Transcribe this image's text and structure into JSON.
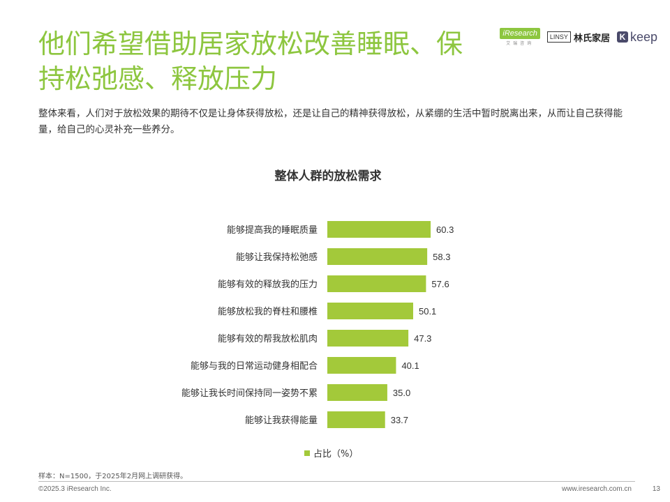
{
  "header": {
    "title": "他们希望借助居家放松改善睡眠、保持松弛感、释放压力",
    "logos": {
      "iresearch": "iResearch",
      "iresearch_sub": "艾瑞咨询",
      "linsy_box": "LINSY",
      "linsy_text": "林氏家居",
      "keep_k": "K",
      "keep_text": "keep"
    },
    "description": "整体来看，人们对于放松效果的期待不仅是让身体获得放松，还是让自己的精神获得放松，从紧绷的生活中暂时脱离出来，从而让自己获得能量，给自己的心灵补充一些养分。"
  },
  "chart_data": {
    "type": "bar",
    "orientation": "horizontal",
    "title": "整体人群的放松需求",
    "categories": [
      "能够提高我的睡眠质量",
      "能够让我保持松弛感",
      "能够有效的释放我的压力",
      "能够放松我的脊柱和腰椎",
      "能够有效的帮我放松肌肉",
      "能够与我的日常运动健身相配合",
      "能够让我长时间保持同一姿势不累",
      "能够让我获得能量"
    ],
    "series": [
      {
        "name": "占比（%）",
        "values": [
          60.3,
          58.3,
          57.6,
          50.1,
          47.3,
          40.1,
          35.0,
          33.7
        ]
      }
    ],
    "value_labels": [
      "60.3",
      "58.3",
      "57.6",
      "50.1",
      "47.3",
      "40.1",
      "35.0",
      "33.7"
    ],
    "bar_color": "#a3c93a",
    "xlim": [
      0,
      100
    ],
    "grid": false,
    "legend_position": "bottom"
  },
  "footer": {
    "source": "样本：N=1500，于2025年2月网上调研获得。",
    "copyright": "©2025.3 iResearch Inc.",
    "url": "www.iresearch.com.cn",
    "page": "13"
  },
  "colors": {
    "accent": "#8dc63f",
    "bar": "#a3c93a"
  }
}
